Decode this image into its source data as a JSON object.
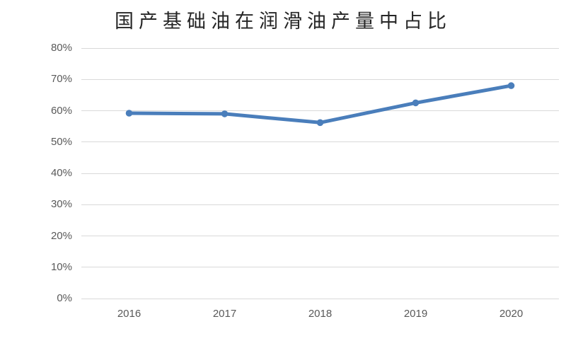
{
  "title": "国产基础油在润滑油产量中占比",
  "colors": {
    "line": "#4a7ebb",
    "marker": "#4a7ebb",
    "gridline": "#d9d9d9",
    "axis_text": "#595959",
    "title_text": "#262626",
    "background": "#ffffff"
  },
  "chart_data": {
    "type": "line",
    "title": "国产基础油在润滑油产量中占比",
    "categories": [
      "2016",
      "2017",
      "2018",
      "2019",
      "2020"
    ],
    "series": [
      {
        "name": "国产基础油在润滑油产量中占比",
        "values": [
          59.2,
          59.0,
          56.2,
          62.5,
          68.0
        ]
      }
    ],
    "xlabel": "",
    "ylabel": "",
    "ylim": [
      0,
      80
    ],
    "ytick_step": 10,
    "ytick_labels": [
      "0%",
      "10%",
      "20%",
      "30%",
      "40%",
      "50%",
      "60%",
      "70%",
      "80%"
    ],
    "grid": true,
    "legend_position": "none",
    "marker": "circle"
  }
}
